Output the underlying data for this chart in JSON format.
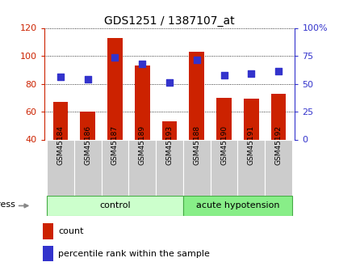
{
  "title": "GDS1251 / 1387107_at",
  "categories": [
    "GSM45184",
    "GSM45186",
    "GSM45187",
    "GSM45189",
    "GSM45193",
    "GSM45188",
    "GSM45190",
    "GSM45191",
    "GSM45192"
  ],
  "count_values": [
    67,
    60,
    113,
    93,
    53,
    103,
    70,
    69,
    73
  ],
  "percentile_left_axis": [
    85,
    83,
    99,
    94,
    81,
    97,
    86,
    87,
    89
  ],
  "bar_color": "#cc2200",
  "dot_color": "#3333cc",
  "ylim_left": [
    40,
    120
  ],
  "ylim_right": [
    0,
    100
  ],
  "yticks_left": [
    40,
    60,
    80,
    100,
    120
  ],
  "ytick_labels_left": [
    "40",
    "60",
    "80",
    "100",
    "120"
  ],
  "yticks_right": [
    0,
    25,
    50,
    75,
    100
  ],
  "ytick_labels_right": [
    "0",
    "25",
    "50",
    "75",
    "100%"
  ],
  "n_control": 5,
  "control_label": "control",
  "acute_label": "acute hypotension",
  "control_color": "#ccffcc",
  "acute_color": "#88ee88",
  "stress_label": "stress",
  "legend_count_label": "count",
  "legend_percentile_label": "percentile rank within the sample",
  "background_color": "#ffffff",
  "bar_width": 0.55,
  "dot_size": 36
}
